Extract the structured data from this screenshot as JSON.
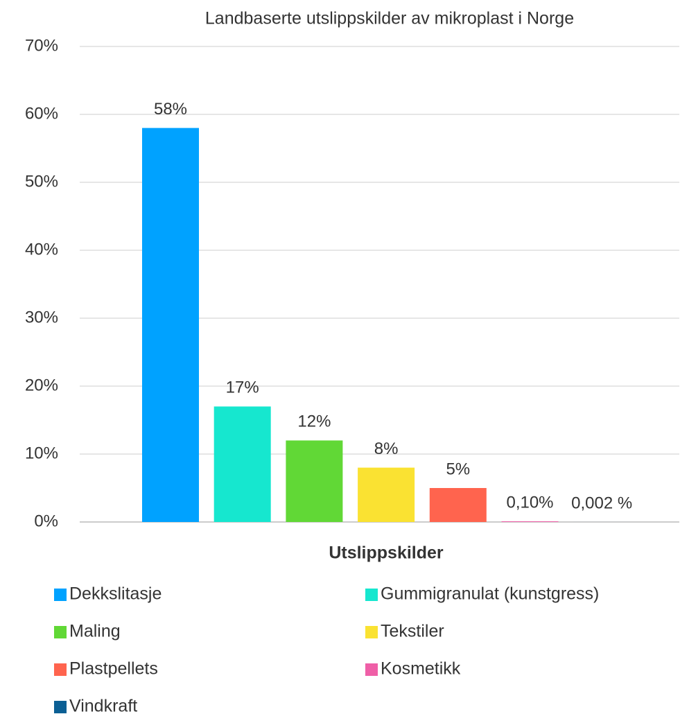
{
  "chart_data": {
    "type": "bar",
    "title": "Landbaserte utslippskilder av mikroplast i Norge",
    "xlabel": "Utslippskilder",
    "ylim": [
      0,
      70
    ],
    "yticks": [
      {
        "value": 0,
        "label": "0%"
      },
      {
        "value": 10,
        "label": "10%"
      },
      {
        "value": 20,
        "label": "20%"
      },
      {
        "value": 30,
        "label": "30%"
      },
      {
        "value": 40,
        "label": "40%"
      },
      {
        "value": 50,
        "label": "50%"
      },
      {
        "value": 60,
        "label": "60%"
      },
      {
        "value": 70,
        "label": "70%"
      }
    ],
    "grid": true,
    "series": [
      {
        "name": "Dekkslitasje",
        "color": "#00a2ff",
        "values": [
          58
        ],
        "value_labels": [
          "58%"
        ]
      },
      {
        "name": "Gummigranulat (kunstgress)",
        "color": "#16e7cf",
        "values": [
          17
        ],
        "value_labels": [
          "17%"
        ]
      },
      {
        "name": "Maling",
        "color": "#61d836",
        "values": [
          12
        ],
        "value_labels": [
          "12%"
        ]
      },
      {
        "name": "Tekstiler",
        "color": "#fae232",
        "values": [
          8
        ],
        "value_labels": [
          "8%"
        ]
      },
      {
        "name": "Plastpellets",
        "color": "#ff644e",
        "values": [
          5
        ],
        "value_labels": [
          "5%"
        ]
      },
      {
        "name": "Kosmetikk",
        "color": "#ef5fa7",
        "values": [
          0.1
        ],
        "value_labels": [
          "0,10%"
        ]
      },
      {
        "name": "Vindkraft",
        "color": "#0b5f94",
        "values": [
          0.002
        ],
        "value_labels": [
          "0,002 %"
        ]
      }
    ]
  }
}
